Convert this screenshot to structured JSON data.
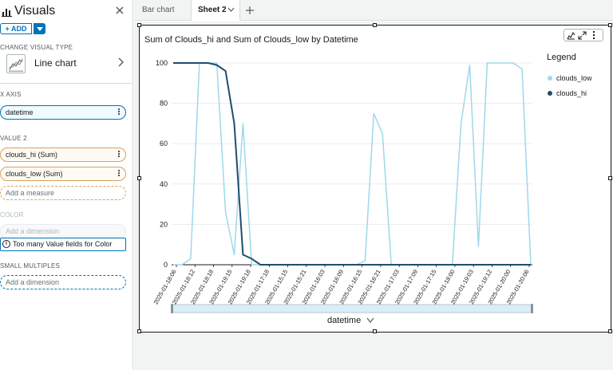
{
  "panel": {
    "title": "Visuals",
    "add_label": "+ ADD",
    "change_visual_type_label": "CHANGE VISUAL TYPE",
    "visual_type": "Line chart",
    "x_axis_label": "X AXIS",
    "x_axis_field": "datetime",
    "value_label": "VALUE  2",
    "value_fields": [
      "clouds_hi (Sum)",
      "clouds_low (Sum)"
    ],
    "add_measure_placeholder": "Add a measure",
    "color_label": "COLOR",
    "color_placeholder": "Add a dimension",
    "color_warning": "Too many Value fields for Color",
    "small_multiples_label": "SMALL MULTIPLES",
    "small_multiples_placeholder": "Add a dimension"
  },
  "tabs": {
    "bar_chart": "Bar chart",
    "sheet2": "Sheet 2"
  },
  "visual": {
    "title": "Sum of Clouds_hi and Sum of Clouds_low by Datetime",
    "legend_title": "Legend",
    "x_axis_title": "datetime"
  },
  "colors": {
    "clouds_low": "#9fd8ea",
    "clouds_hi": "#1f4e6d",
    "grid": "#e9ebed",
    "axis": "#16191f",
    "scrollbar": "#d9eef8"
  },
  "chart_data": {
    "type": "line",
    "title": "Sum of Clouds_hi and Sum of Clouds_low by Datetime",
    "xlabel": "datetime",
    "ylabel": "",
    "ylim": [
      0,
      100
    ],
    "yticks": [
      0,
      20,
      40,
      60,
      80,
      100
    ],
    "legend_position": "right",
    "grid": true,
    "tick_labels": [
      "2025-01-18:06",
      "2025-01-18:12",
      "2025-01-18:18",
      "2025-01-19:15",
      "2025-01-19:18",
      "2025-01-17:18",
      "2025-01-15:15",
      "2025-01-15:21",
      "2025-01-16:03",
      "2025-01-16:09",
      "2025-01-16:15",
      "2025-01-16:21",
      "2025-01-17:03",
      "2025-01-17:09",
      "2025-01-17:15",
      "2025-01-18:00",
      "2025-01-19:03",
      "2025-01-19:12",
      "2025-01-20:00",
      "2025-01-20:06"
    ],
    "series": [
      {
        "name": "clouds_low",
        "values": [
          0,
          0,
          3,
          100,
          100,
          100,
          26,
          5,
          70,
          0,
          0,
          0,
          0,
          0,
          0,
          0,
          0,
          0,
          0,
          0,
          0,
          0,
          2,
          75,
          65,
          0,
          0,
          0,
          0,
          0,
          0,
          0,
          0,
          70,
          99,
          9,
          100,
          100,
          100,
          100,
          97,
          0
        ]
      },
      {
        "name": "clouds_hi",
        "values": [
          100,
          100,
          100,
          100,
          100,
          99,
          96,
          70,
          5,
          3,
          0,
          0,
          0,
          0,
          0,
          0,
          0,
          0,
          0,
          0,
          0,
          0,
          0,
          0,
          0,
          0,
          0,
          0,
          0,
          0,
          0,
          0,
          0,
          0,
          0,
          0,
          0,
          0,
          0,
          0,
          0,
          0
        ]
      }
    ]
  }
}
